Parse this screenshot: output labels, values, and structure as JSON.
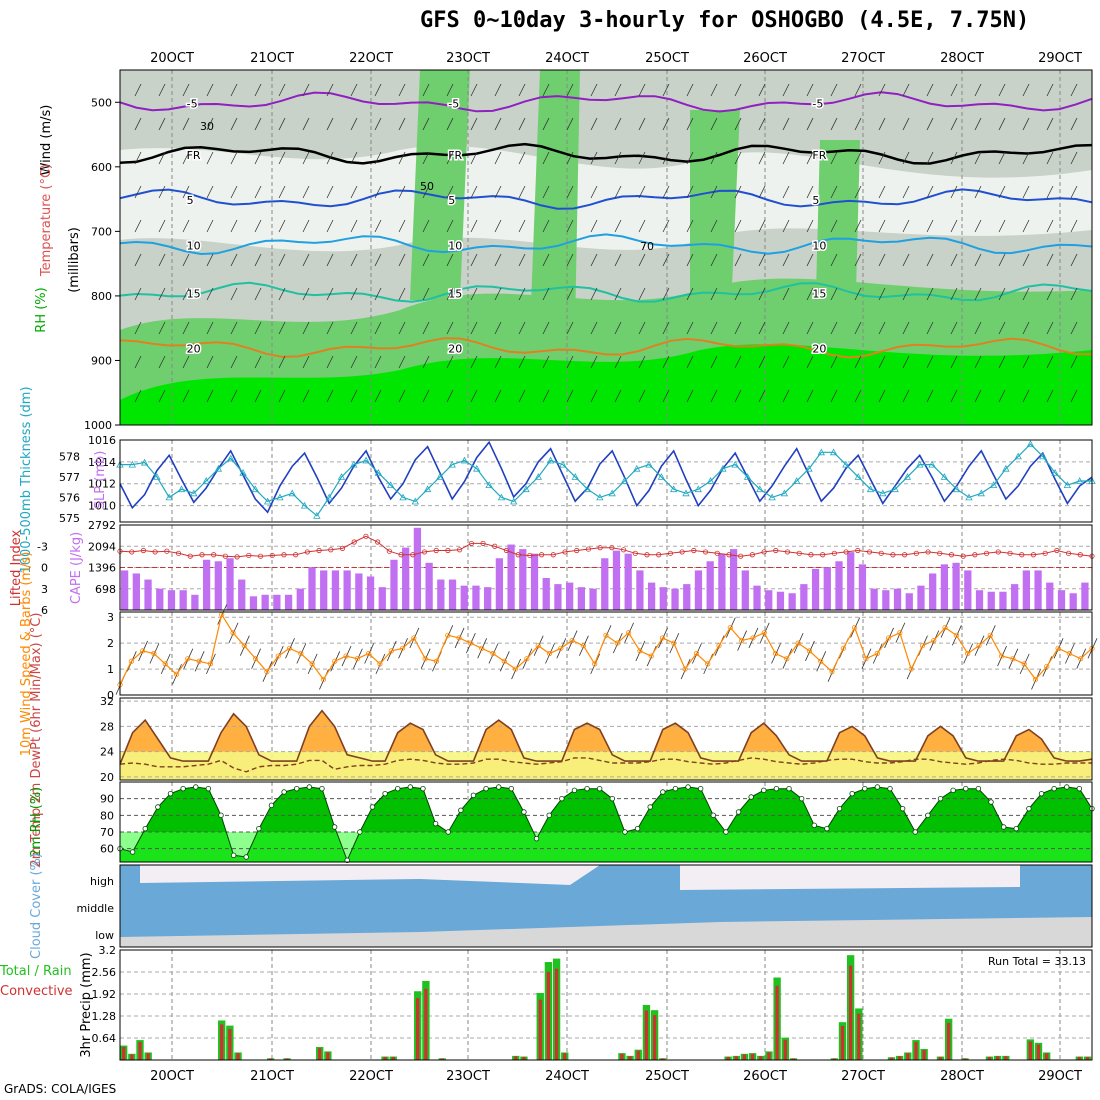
{
  "title": "GFS 0~10day 3-hourly for OSHOGBO (4.5E, 7.75N)",
  "credit": "GrADS: COLA/IGES",
  "dates": [
    "20OCT",
    "21OCT",
    "22OCT",
    "23OCT",
    "24OCT",
    "25OCT",
    "26OCT",
    "27OCT",
    "28OCT",
    "29OCT"
  ],
  "colors": {
    "green": "#00e600",
    "dark_green": "#009900",
    "orange": "#ff8800",
    "blue": "#2040c0",
    "cyan": "#20a8c0",
    "red": "#d03030",
    "purple": "#c070f0",
    "cloud": "#6aa8d8"
  },
  "chart_data": [
    {
      "type": "heatmap",
      "name": "upper",
      "labels": {
        "rh": "RH (%)",
        "temp": "Temperature (°C)",
        "wind": "Wind (m/s)",
        "unit": "(millibars)"
      },
      "ylim": [
        1000,
        450
      ],
      "yticks": [
        500,
        600,
        700,
        800,
        900,
        1000
      ],
      "temp_labels": [
        {
          "text": "-5",
          "p": 500
        },
        {
          "text": "FR",
          "p": 580
        },
        {
          "text": "5",
          "p": 650
        },
        {
          "text": "10",
          "p": 720
        },
        {
          "text": "15",
          "p": 795
        },
        {
          "text": "20",
          "p": 880
        }
      ],
      "rh_labels": [
        "30",
        "50",
        "70"
      ]
    },
    {
      "type": "line",
      "name": "slp_thickness",
      "ylabel_left": "1000-500mb Thickness (dm)",
      "ylabel_right": "SLP (mb)",
      "left_ticks": [
        575,
        576,
        577,
        578
      ],
      "right_ticks": [
        1010,
        1012,
        1014,
        1016
      ],
      "ylim_slp": [
        1008.5,
        1016
      ],
      "ylim_thk": [
        574.8,
        578.8
      ],
      "slp": [
        1012.0,
        1009.8,
        1011.0,
        1013.2,
        1014.6,
        1012.4,
        1010.3,
        1011.6,
        1013.4,
        1015.0,
        1012.8,
        1010.6,
        1009.4,
        1011.8,
        1013.6,
        1014.8,
        1012.6,
        1010.2,
        1011.6,
        1013.6,
        1015.0,
        1012.6,
        1010.6,
        1012.0,
        1014.2,
        1015.4,
        1013.0,
        1010.6,
        1012.2,
        1014.4,
        1015.8,
        1013.4,
        1010.8,
        1012.0,
        1014.0,
        1015.2,
        1012.8,
        1010.4,
        1011.6,
        1013.8,
        1015.0,
        1012.6,
        1010.0,
        1011.4,
        1013.6,
        1015.0,
        1012.4,
        1010.0,
        1011.4,
        1013.4,
        1014.8,
        1012.6,
        1010.4,
        1011.8,
        1013.6,
        1015.2,
        1012.8,
        1010.4,
        1011.6,
        1013.4,
        1014.6,
        1012.4,
        1010.2,
        1011.8,
        1013.4,
        1014.6,
        1012.6,
        1010.4,
        1011.8,
        1013.6,
        1015.0,
        1012.8,
        1010.6,
        1011.8,
        1013.6,
        1014.8,
        1012.4,
        1010.2,
        1011.8,
        1012.6
      ],
      "thickness": [
        577.6,
        577.6,
        577.7,
        577.0,
        576.0,
        576.4,
        576.2,
        576.8,
        577.4,
        577.9,
        577.2,
        576.4,
        575.8,
        576.0,
        576.2,
        575.6,
        575.1,
        576.0,
        577.0,
        577.6,
        577.8,
        577.2,
        576.6,
        576.0,
        575.8,
        576.4,
        577.0,
        577.6,
        577.8,
        577.4,
        576.6,
        576.0,
        575.8,
        576.4,
        577.0,
        577.8,
        577.6,
        577.0,
        576.4,
        576.0,
        576.2,
        576.8,
        577.4,
        577.6,
        577.0,
        576.4,
        576.2,
        576.4,
        576.8,
        577.4,
        577.6,
        577.0,
        576.4,
        576.0,
        576.2,
        576.8,
        577.4,
        578.2,
        578.2,
        577.6,
        577.0,
        576.4,
        576.2,
        576.4,
        577.0,
        577.6,
        577.6,
        577.0,
        576.4,
        576.0,
        576.2,
        576.6,
        577.4,
        578.0,
        578.6,
        578.0,
        577.2,
        576.6,
        576.8,
        576.8
      ]
    },
    {
      "type": "bar",
      "name": "cape_li",
      "ylabel_left": "Lifted Index",
      "ylabel_right": "CAPE (J/kg)",
      "left_ticks": [
        "-3",
        "0",
        "3",
        "6"
      ],
      "right_ticks": [
        698,
        1396,
        2094,
        2792
      ],
      "ylim_cape": [
        0,
        2792
      ],
      "cape": [
        1300,
        1200,
        1000,
        700,
        650,
        650,
        500,
        1650,
        1600,
        1700,
        1000,
        450,
        500,
        500,
        500,
        700,
        1400,
        1300,
        1300,
        1300,
        1200,
        1100,
        750,
        1650,
        2050,
        2700,
        1550,
        1000,
        1000,
        800,
        800,
        750,
        1700,
        2150,
        2000,
        1850,
        1050,
        850,
        900,
        750,
        700,
        1700,
        1950,
        1850,
        1300,
        900,
        750,
        700,
        850,
        1300,
        1600,
        1850,
        2000,
        1300,
        800,
        650,
        600,
        550,
        850,
        1350,
        1400,
        1600,
        1900,
        1500,
        700,
        650,
        700,
        550,
        800,
        1200,
        1500,
        1550,
        1300,
        650,
        600,
        600,
        850,
        1300,
        1300,
        900,
        650,
        550,
        900
      ],
      "lifted_index": [
        -2.3,
        -2.2,
        -2.4,
        -2.2,
        -2.3,
        -2.0,
        -1.6,
        -1.8,
        -1.8,
        -1.6,
        -1.5,
        -1.7,
        -1.6,
        -1.7,
        -1.8,
        -1.8,
        -2.2,
        -2.4,
        -2.5,
        -2.7,
        -3.6,
        -4.4,
        -3.6,
        -2.3,
        -1.8,
        -1.8,
        -2.2,
        -2.4,
        -2.4,
        -2.5,
        -3.4,
        -3.4,
        -3.0,
        -2.4,
        -1.8,
        -1.7,
        -1.8,
        -1.8,
        -2.2,
        -2.4,
        -2.6,
        -2.8,
        -2.8,
        -2.5,
        -2.0,
        -1.8,
        -1.8,
        -2.0,
        -2.2,
        -2.4,
        -2.2,
        -2.0,
        -1.8,
        -1.6,
        -1.8,
        -2.2,
        -2.4,
        -2.2,
        -2.0,
        -1.8,
        -1.8,
        -2.0,
        -2.2,
        -2.4,
        -2.2,
        -2.0,
        -1.8,
        -1.8,
        -2.0,
        -2.2,
        -2.0,
        -1.8,
        -1.6,
        -1.8,
        -2.0,
        -2.2,
        -2.0,
        -1.8,
        -1.8,
        -2.0,
        -2.4,
        -2.0,
        -1.8,
        -1.6
      ]
    },
    {
      "type": "line",
      "name": "wind10m",
      "ylabel": "10m Wind Speed & Barbs (m/s)",
      "ticks": [
        0,
        1,
        2,
        3
      ],
      "ylim": [
        0,
        3.2
      ],
      "speed": [
        0.4,
        1.3,
        1.7,
        1.6,
        1.2,
        0.8,
        1.4,
        1.3,
        1.2,
        3.1,
        2.4,
        1.9,
        1.4,
        0.9,
        1.5,
        1.8,
        1.6,
        1.2,
        0.6,
        1.3,
        1.5,
        1.4,
        1.6,
        1.2,
        1.7,
        1.8,
        2.2,
        1.4,
        1.3,
        2.3,
        2.2,
        2.0,
        1.8,
        1.6,
        1.3,
        1.0,
        1.4,
        1.9,
        1.6,
        1.8,
        2.1,
        1.9,
        1.2,
        2.3,
        2.0,
        2.4,
        1.7,
        1.5,
        2.2,
        2.0,
        1.0,
        1.6,
        1.2,
        1.9,
        2.6,
        2.1,
        2.2,
        2.4,
        1.6,
        1.4,
        2.0,
        1.7,
        1.3,
        0.9,
        1.8,
        2.6,
        1.4,
        1.6,
        2.2,
        2.4,
        1.0,
        1.9,
        2.1,
        2.6,
        2.3,
        1.6,
        1.9,
        2.3,
        1.5,
        1.4,
        1.2,
        0.6,
        1.1,
        1.8,
        1.6,
        1.4,
        1.8
      ]
    },
    {
      "type": "area",
      "name": "temp2m",
      "ylabel": "2m Temp 2m DewPt (6hr Min/Max) (°C)",
      "ticks": [
        20,
        24,
        28,
        32
      ],
      "ylim": [
        19.5,
        32.5
      ],
      "temp": [
        22.0,
        27.0,
        29.0,
        26.0,
        23.0,
        22.5,
        22.5,
        22.5,
        27.0,
        30.0,
        28.0,
        23.5,
        22.5,
        22.5,
        22.5,
        28.0,
        30.5,
        28.0,
        23.5,
        23.0,
        22.5,
        22.5,
        27.0,
        28.5,
        27.5,
        23.5,
        22.5,
        22.5,
        22.5,
        27.5,
        29.0,
        27.5,
        23.0,
        22.5,
        22.5,
        22.5,
        27.5,
        28.5,
        27.5,
        23.5,
        22.5,
        22.5,
        22.5,
        27.5,
        28.5,
        27.0,
        23.0,
        22.5,
        22.5,
        22.5,
        27.0,
        28.5,
        26.5,
        23.5,
        22.5,
        22.5,
        22.5,
        27.0,
        28.0,
        26.5,
        23.0,
        22.5,
        22.5,
        22.5,
        26.5,
        28.0,
        26.5,
        23.0,
        22.5,
        22.5,
        22.5,
        26.5,
        27.5,
        26.0,
        23.0,
        22.5,
        22.5,
        22.8
      ],
      "dewpoint": [
        22.0,
        22.2,
        22.0,
        21.6,
        21.6,
        21.6,
        21.8,
        22.0,
        22.6,
        21.4,
        20.8,
        21.6,
        21.8,
        21.8,
        22.0,
        22.6,
        22.6,
        21.2,
        21.6,
        21.8,
        21.8,
        22.0,
        22.6,
        22.8,
        22.6,
        22.2,
        22.0,
        22.0,
        22.2,
        22.8,
        22.8,
        22.4,
        22.2,
        22.0,
        22.2,
        22.4,
        23.0,
        23.0,
        22.6,
        22.2,
        22.2,
        22.2,
        22.4,
        22.8,
        22.8,
        22.4,
        22.2,
        22.0,
        22.2,
        22.6,
        23.0,
        22.8,
        22.4,
        22.2,
        22.0,
        22.2,
        22.6,
        22.8,
        22.8,
        22.4,
        22.2,
        22.2,
        22.4,
        22.8,
        22.8,
        22.4,
        22.2,
        22.0,
        22.2,
        22.6,
        22.8,
        22.6,
        22.2,
        22.0,
        22.0,
        22.2,
        22.2,
        22.2
      ]
    },
    {
      "type": "area",
      "name": "rh2m",
      "ylabel": "2m RH (%)",
      "ticks": [
        60,
        70,
        80,
        90
      ],
      "ylim": [
        52,
        100
      ],
      "rh": [
        60,
        58,
        72,
        85,
        93,
        96,
        97,
        96,
        80,
        56,
        55,
        72,
        86,
        94,
        96,
        97,
        96,
        73,
        53,
        70,
        85,
        93,
        96,
        97,
        96,
        75,
        70,
        83,
        92,
        96,
        97,
        96,
        82,
        66,
        80,
        90,
        95,
        96,
        96,
        90,
        70,
        72,
        85,
        94,
        96,
        97,
        96,
        80,
        70,
        82,
        91,
        95,
        96,
        96,
        90,
        74,
        72,
        84,
        93,
        96,
        97,
        96,
        84,
        70,
        80,
        90,
        95,
        96,
        96,
        88,
        73,
        72,
        84,
        93,
        96,
        97,
        96,
        84
      ]
    },
    {
      "type": "area",
      "name": "cloud",
      "ylabel": "Cloud Cover (%)",
      "levels": [
        "high",
        "middle",
        "low"
      ]
    },
    {
      "type": "bar",
      "name": "precip",
      "ylabel": "3hr Precip (mm)",
      "legend_left": "Total / Rain",
      "legend_right": "Convective",
      "annotation": "Run Total = 33.13",
      "ticks": [
        "0.64",
        "1.28",
        "1.92",
        "2.56",
        "3.2"
      ],
      "ylim": [
        0,
        3.2
      ],
      "precip": [
        0.42,
        0.18,
        0.58,
        0.22,
        0,
        0,
        0,
        0,
        0,
        0,
        0,
        0,
        1.15,
        1.0,
        0.22,
        0,
        0,
        0,
        0.05,
        0,
        0.05,
        0,
        0,
        0,
        0.38,
        0.25,
        0,
        0,
        0,
        0,
        0,
        0,
        0.1,
        0.1,
        0,
        0,
        2.0,
        2.3,
        0,
        0.05,
        0,
        0,
        0,
        0,
        0,
        0,
        0,
        0,
        0.12,
        0.1,
        0,
        1.95,
        2.85,
        2.95,
        0.22,
        0,
        0,
        0,
        0,
        0,
        0,
        0.2,
        0.12,
        0.3,
        1.6,
        1.45,
        0.05,
        0,
        0,
        0,
        0,
        0,
        0,
        0,
        0.1,
        0.12,
        0.18,
        0.2,
        0.12,
        0.25,
        2.4,
        0.65,
        0.05,
        0,
        0,
        0,
        0,
        0.05,
        1.1,
        3.05,
        1.5,
        0,
        0,
        0,
        0.08,
        0.12,
        0.22,
        0.58,
        0.32,
        0,
        0.1,
        1.2,
        0,
        0.05,
        0,
        0,
        0.1,
        0.12,
        0.12,
        0,
        0,
        0.6,
        0.5,
        0.22,
        0,
        0,
        0,
        0.1,
        0.1
      ]
    }
  ]
}
